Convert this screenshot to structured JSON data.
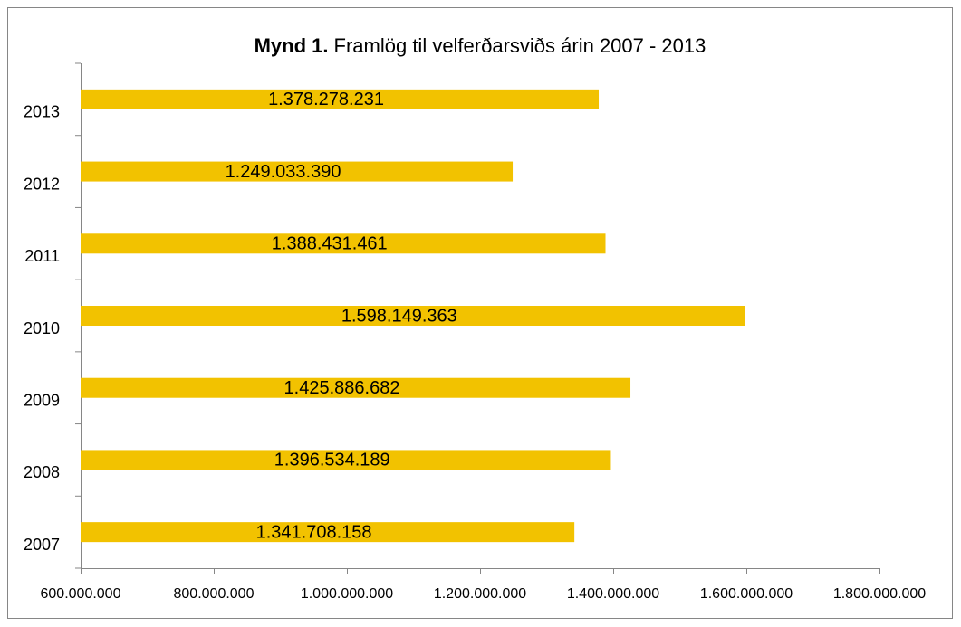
{
  "chart_data": {
    "type": "bar",
    "orientation": "horizontal",
    "title": {
      "bold": "Mynd 1.",
      "text": "Framlög til velferðarsviðs árin 2007 - 2013"
    },
    "categories": [
      "2007",
      "2008",
      "2009",
      "2010",
      "2011",
      "2012",
      "2013"
    ],
    "values": [
      1341708158,
      1396534189,
      1425886682,
      1598149363,
      1388431461,
      1249033390,
      1378278231
    ],
    "value_labels": [
      "1.341.708.158",
      "1.396.534.189",
      "1.425.886.682",
      "1.598.149.363",
      "1.388.431.461",
      "1.249.033.390",
      "1.378.278.231"
    ],
    "color": "#f2c200",
    "xlim": [
      600000000,
      1800000000
    ],
    "xticks": [
      {
        "value": 600000000,
        "label": "600.000.000"
      },
      {
        "value": 800000000,
        "label": "800.000.000"
      },
      {
        "value": 1000000000,
        "label": "1.000.000.000"
      },
      {
        "value": 1200000000,
        "label": "1.200.000.000"
      },
      {
        "value": 1400000000,
        "label": "1.400.000.000"
      },
      {
        "value": 1600000000,
        "label": "1.600.000.000"
      },
      {
        "value": 1800000000,
        "label": "1.800.000.000"
      }
    ]
  }
}
